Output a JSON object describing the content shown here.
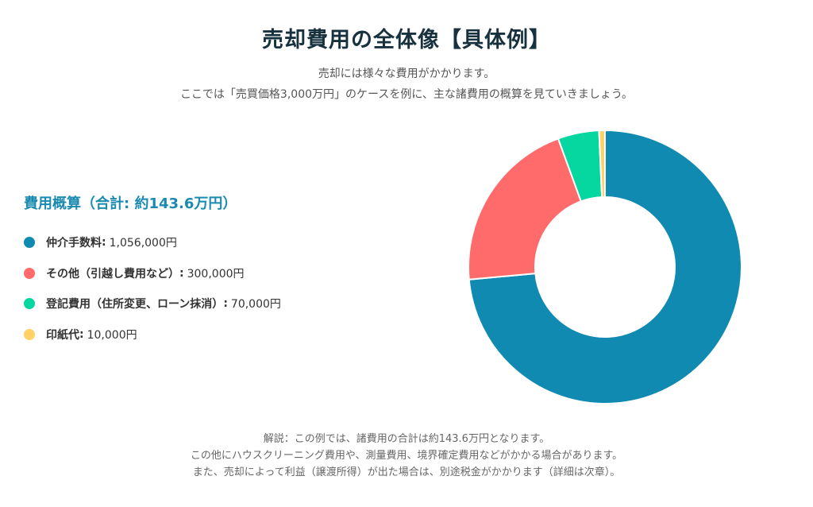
{
  "header": {
    "title": "売却費用の全体像【具体例】",
    "subtitle_lines": [
      "売却には様々な費用がかかります。",
      "ここでは「売買価格3,000万円」のケースを例に、主な諸費用の概算を見ていきましょう。"
    ]
  },
  "summary": {
    "text": "費用概算（合計: 約143.6万円）"
  },
  "legend": {
    "items": [
      {
        "name": "仲介手数料",
        "sep": ":",
        "value": "1,056,000円"
      },
      {
        "name": "その他（引越し費用など）",
        "sep": ":",
        "value": "300,000円"
      },
      {
        "name": "登記費用（住所変更、ローン抹消）",
        "sep": ":",
        "value": "70,000円"
      },
      {
        "name": "印紙代",
        "sep": ":",
        "value": "10,000円"
      }
    ]
  },
  "chart_data": {
    "type": "pie",
    "donut": true,
    "categories": [
      "仲介手数料",
      "その他（引越し費用など）",
      "登記費用（住所変更、ローン抹消）",
      "印紙代"
    ],
    "values": [
      1056000,
      300000,
      70000,
      10000
    ],
    "colors": [
      "#118ab2",
      "#ff6b6b",
      "#06d6a0",
      "#ffd166"
    ],
    "legend_position": "left"
  },
  "footer": {
    "lines": [
      "解説：この例では、諸費用の合計は約143.6万円となります。",
      "この他にハウスクリーニング費用や、測量費用、境界確定費用などがかかる場合があります。",
      "また、売却によって利益（譲渡所得）が出た場合は、別途税金がかかります（詳細は次章）。"
    ]
  }
}
